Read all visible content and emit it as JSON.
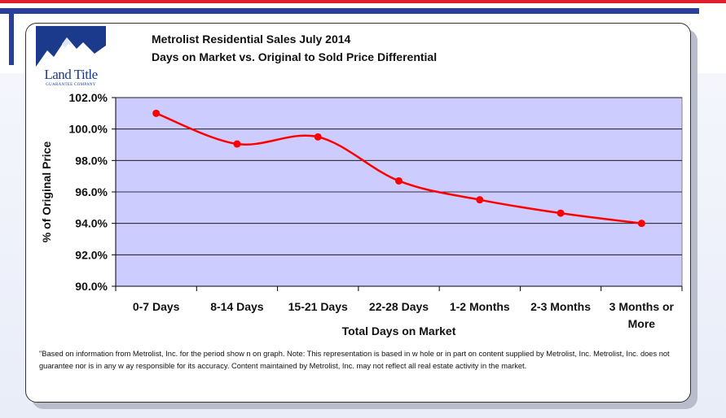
{
  "logo": {
    "name": "Land Title",
    "tagline": "GUARANTEE COMPANY"
  },
  "colors": {
    "plot_bg": "#ccccff",
    "line": "#ff0000",
    "brand_blue": "#1b3a8c",
    "brand_red": "#e0202a"
  },
  "chart_data": {
    "type": "line",
    "title": "Metrolist Residential Sales July 2014",
    "subtitle": "Days on Market vs. Original to Sold Price Differential",
    "xlabel": "Total Days on Market",
    "ylabel": "% of Original Price",
    "categories": [
      [
        "0-7 Days"
      ],
      [
        "8-14 Days"
      ],
      [
        "15-21 Days"
      ],
      [
        "22-28 Days"
      ],
      [
        "1-2 Months"
      ],
      [
        "2-3 Months"
      ],
      [
        "3 Months or",
        "More"
      ]
    ],
    "values": [
      101.0,
      99.05,
      99.5,
      96.7,
      95.5,
      94.65,
      94.0
    ],
    "ylim": [
      90,
      102
    ],
    "yticks": [
      "90.0%",
      "92.0%",
      "94.0%",
      "96.0%",
      "98.0%",
      "100.0%",
      "102.0%"
    ],
    "grid": true,
    "legend": "none"
  },
  "footnote": "\"Based on information from Metrolist, Inc. for the period show n on graph. Note: This representation is based in w hole or in part on content supplied by Metrolist, Inc. Metrolist, Inc. does not guarantee nor is in any w ay responsible for its accuracy. Content maintained by Metrolist, Inc. may not reflect all real estate activity in the market."
}
